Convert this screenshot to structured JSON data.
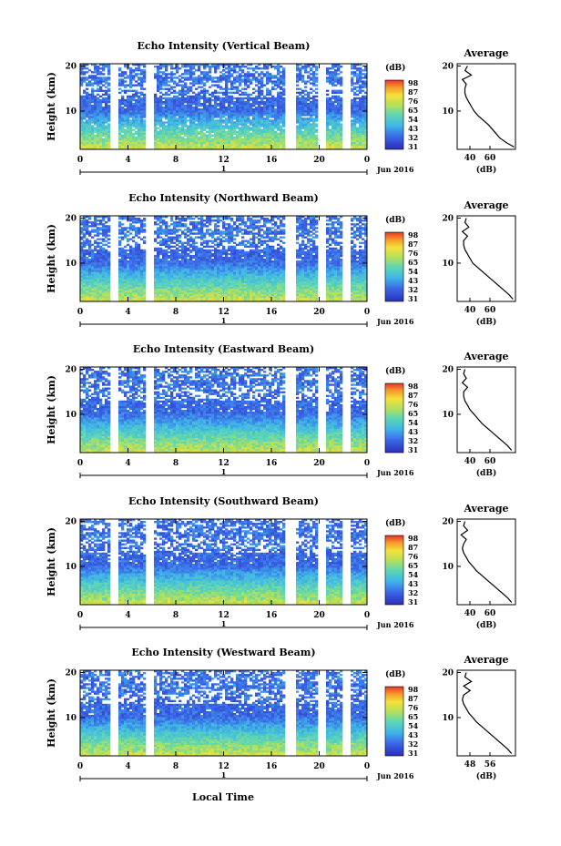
{
  "figure": {
    "date_label": "Jun 2016",
    "xlabel": "Local Time",
    "colorbar_unit": "(dB)",
    "average_title": "Average",
    "average_xlabel": "(dB)",
    "ylabel": "Height (km)"
  },
  "chart_data": [
    {
      "type": "heatmap",
      "title": "Echo Intensity (Vertical Beam)",
      "xlabel": "Local Time",
      "ylabel": "Height (km)",
      "x_ticks": [
        "0",
        "4",
        "8",
        "12",
        "16",
        "20",
        "0"
      ],
      "y_ticks": [
        "10",
        "20"
      ],
      "xlim": [
        0,
        24
      ],
      "ylim": [
        1.5,
        20.5
      ],
      "day_marker": "1",
      "date": "Jun 2016",
      "colorbar_label": "(dB)",
      "colorbar_ticks": [
        "31",
        "32",
        "43",
        "54",
        "65",
        "76",
        "87",
        "98"
      ],
      "data_gaps_hours": [
        2.8,
        5.8,
        17.6,
        20.2,
        22.3
      ],
      "colormap": "jet",
      "average_profile": {
        "title": "Average",
        "xlabel": "(dB)",
        "x_ticks": [
          "40",
          "60"
        ],
        "xlim": [
          30,
          75
        ],
        "y_ticks": [
          "10",
          "20"
        ],
        "heights": [
          2,
          3,
          4,
          5,
          6,
          7,
          8,
          9,
          10,
          11,
          12,
          13,
          14,
          15,
          16,
          17,
          18,
          19,
          20
        ],
        "values": [
          74,
          68,
          63,
          60,
          57,
          54,
          50,
          46,
          43,
          41,
          39,
          37,
          36,
          36,
          37,
          34,
          41,
          36,
          38
        ]
      }
    },
    {
      "type": "heatmap",
      "title": "Echo Intensity (Northward Beam)",
      "xlabel": "Local Time",
      "ylabel": "Height (km)",
      "x_ticks": [
        "0",
        "4",
        "8",
        "12",
        "16",
        "20",
        "0"
      ],
      "y_ticks": [
        "10",
        "20"
      ],
      "xlim": [
        0,
        24
      ],
      "ylim": [
        1.5,
        20.5
      ],
      "day_marker": "1",
      "date": "Jun 2016",
      "colorbar_label": "(dB)",
      "colorbar_ticks": [
        "31",
        "32",
        "43",
        "54",
        "65",
        "76",
        "87",
        "98"
      ],
      "data_gaps_hours": [
        2.8,
        5.8,
        17.6,
        20.2,
        22.3
      ],
      "colormap": "jet",
      "average_profile": {
        "title": "Average",
        "xlabel": "(dB)",
        "x_ticks": [
          "40",
          "60"
        ],
        "xlim": [
          30,
          75
        ],
        "y_ticks": [
          "10",
          "20"
        ],
        "heights": [
          2,
          3,
          4,
          5,
          6,
          7,
          8,
          9,
          10,
          11,
          12,
          13,
          14,
          15,
          16,
          17,
          18,
          19,
          20
        ],
        "values": [
          73,
          70,
          66,
          62,
          58,
          54,
          50,
          46,
          42,
          40,
          38,
          36,
          35,
          35,
          38,
          34,
          39,
          36,
          37
        ]
      }
    },
    {
      "type": "heatmap",
      "title": "Echo Intensity (Eastward Beam)",
      "xlabel": "Local Time",
      "ylabel": "Height (km)",
      "x_ticks": [
        "0",
        "4",
        "8",
        "12",
        "16",
        "20",
        "0"
      ],
      "y_ticks": [
        "10",
        "20"
      ],
      "xlim": [
        0,
        24
      ],
      "ylim": [
        1.5,
        20.5
      ],
      "day_marker": "1",
      "date": "Jun 2016",
      "colorbar_label": "(dB)",
      "colorbar_ticks": [
        "31",
        "32",
        "43",
        "54",
        "65",
        "76",
        "87",
        "98"
      ],
      "data_gaps_hours": [
        2.8,
        5.8,
        17.6,
        20.2,
        22.3
      ],
      "colormap": "jet",
      "average_profile": {
        "title": "Average",
        "xlabel": "(dB)",
        "x_ticks": [
          "40",
          "60"
        ],
        "xlim": [
          30,
          75
        ],
        "y_ticks": [
          "10",
          "20"
        ],
        "heights": [
          2,
          3,
          4,
          5,
          6,
          7,
          8,
          9,
          10,
          11,
          12,
          13,
          14,
          15,
          16,
          17,
          18,
          19,
          20
        ],
        "values": [
          72,
          69,
          65,
          61,
          57,
          53,
          49,
          46,
          43,
          40,
          38,
          36,
          35,
          35,
          38,
          34,
          37,
          35,
          36
        ]
      }
    },
    {
      "type": "heatmap",
      "title": "Echo Intensity (Southward Beam)",
      "xlabel": "Local Time",
      "ylabel": "Height (km)",
      "x_ticks": [
        "0",
        "4",
        "8",
        "12",
        "16",
        "20",
        "0"
      ],
      "y_ticks": [
        "10",
        "20"
      ],
      "xlim": [
        0,
        24
      ],
      "ylim": [
        1.5,
        20.5
      ],
      "day_marker": "1",
      "date": "Jun 2016",
      "colorbar_label": "(dB)",
      "colorbar_ticks": [
        "31",
        "32",
        "43",
        "54",
        "65",
        "76",
        "87",
        "98"
      ],
      "data_gaps_hours": [
        2.8,
        5.8,
        17.6,
        20.2,
        22.3
      ],
      "colormap": "jet",
      "average_profile": {
        "title": "Average",
        "xlabel": "(dB)",
        "x_ticks": [
          "40",
          "60"
        ],
        "xlim": [
          30,
          75
        ],
        "y_ticks": [
          "10",
          "20"
        ],
        "heights": [
          2,
          3,
          4,
          5,
          6,
          7,
          8,
          9,
          10,
          11,
          12,
          13,
          14,
          15,
          16,
          17,
          18,
          19,
          20
        ],
        "values": [
          72,
          69,
          65,
          61,
          57,
          53,
          49,
          45,
          42,
          39,
          37,
          35,
          34,
          35,
          37,
          33,
          38,
          35,
          36
        ]
      }
    },
    {
      "type": "heatmap",
      "title": "Echo Intensity (Westward Beam)",
      "xlabel": "Local Time",
      "ylabel": "Height (km)",
      "x_ticks": [
        "0",
        "4",
        "8",
        "12",
        "16",
        "20",
        "0"
      ],
      "y_ticks": [
        "10",
        "20"
      ],
      "xlim": [
        0,
        24
      ],
      "ylim": [
        1.5,
        20.5
      ],
      "day_marker": "1",
      "date": "Jun 2016",
      "colorbar_label": "(dB)",
      "colorbar_ticks": [
        "31",
        "32",
        "43",
        "54",
        "65",
        "76",
        "87",
        "98"
      ],
      "data_gaps_hours": [
        2.8,
        5.8,
        17.6,
        20.2,
        22.3
      ],
      "colormap": "jet",
      "average_profile": {
        "title": "Average",
        "xlabel": "(dB)",
        "x_ticks": [
          "48",
          "56"
        ],
        "xlim": [
          30,
          75
        ],
        "y_ticks": [
          "10",
          "20"
        ],
        "heights": [
          2,
          3,
          4,
          5,
          6,
          7,
          8,
          9,
          10,
          11,
          12,
          13,
          14,
          15,
          16,
          17,
          18,
          19,
          20
        ],
        "values": [
          72,
          69,
          65,
          61,
          57,
          53,
          49,
          45,
          42,
          39,
          37,
          35,
          34,
          35,
          40,
          35,
          41,
          36,
          37
        ]
      }
    }
  ]
}
